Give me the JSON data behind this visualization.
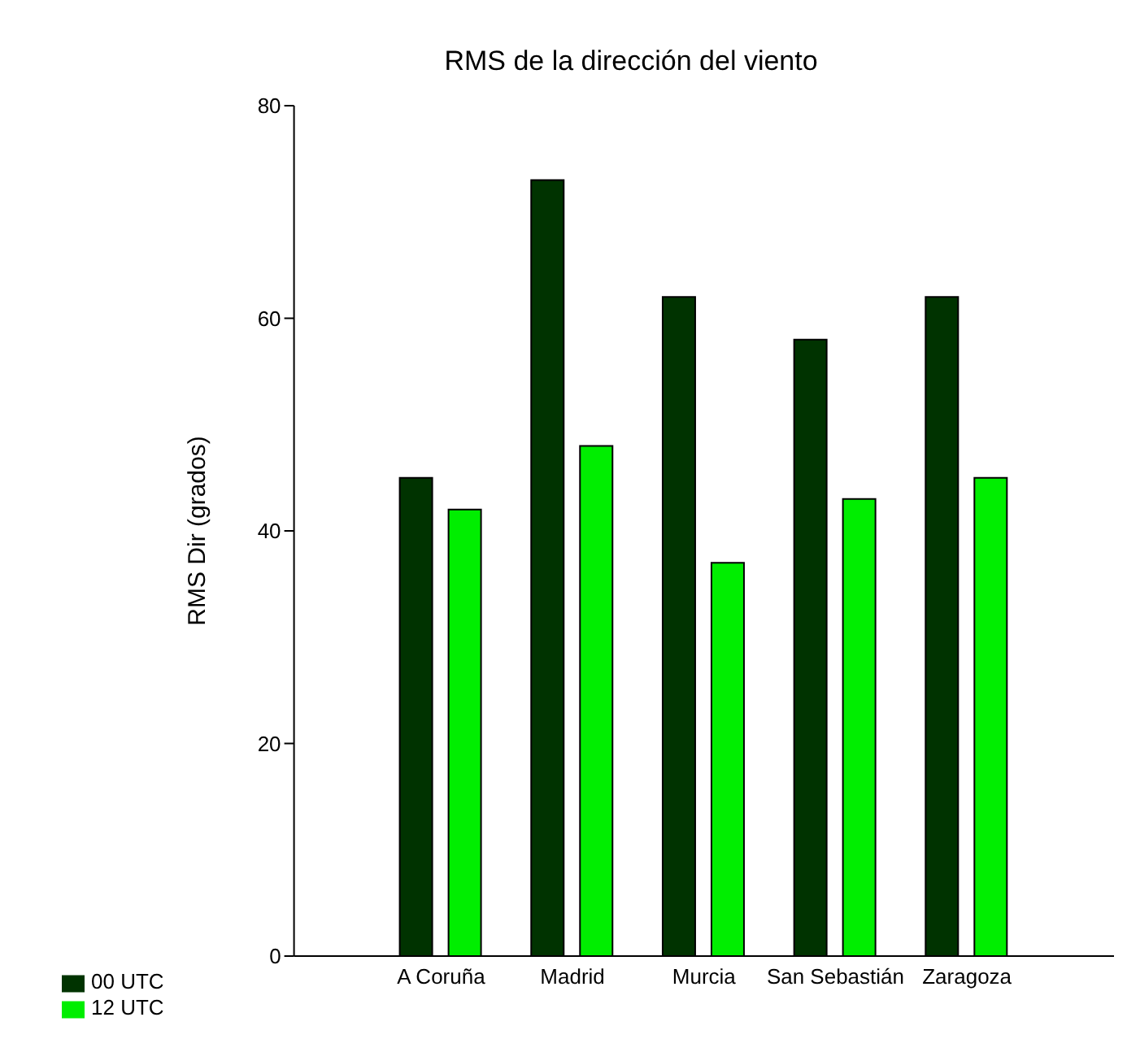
{
  "chart_data": {
    "type": "bar",
    "title": "RMS de la dirección del viento",
    "ylabel": "RMS Dir (grados)",
    "categories": [
      "A Coruña",
      "Madrid",
      "Murcia",
      "San Sebastián",
      "Zaragoza"
    ],
    "series": [
      {
        "name": "00 UTC",
        "color": "#003300",
        "values": [
          45,
          73,
          62,
          58,
          62
        ]
      },
      {
        "name": "12 UTC",
        "color": "#00ee00",
        "values": [
          42,
          48,
          37,
          43,
          45
        ]
      }
    ],
    "ylim": [
      0,
      80
    ],
    "yticks": [
      0,
      20,
      40,
      60,
      80
    ],
    "grid": false,
    "legend": "bottom left"
  }
}
